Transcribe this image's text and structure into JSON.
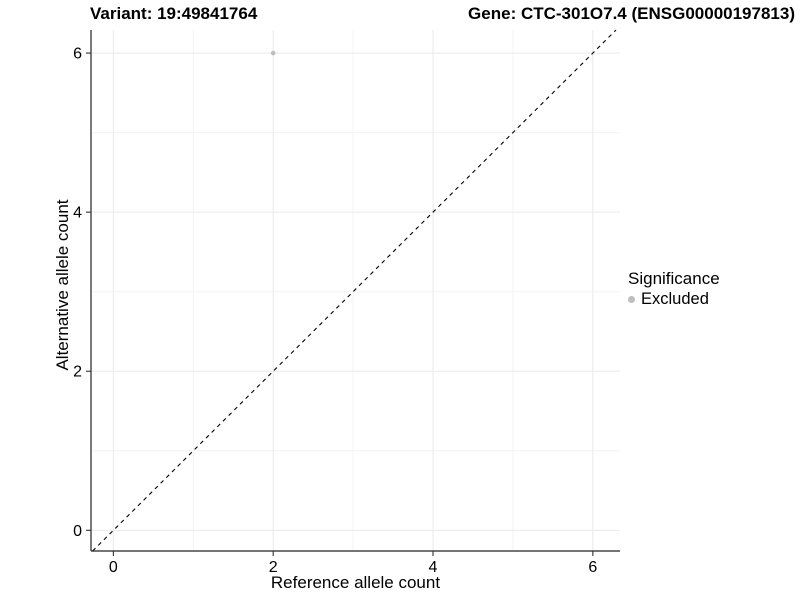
{
  "header": {
    "left_title": "Variant: 19:49841764",
    "right_title": "Gene: CTC-301O7.4 (ENSG00000197813)"
  },
  "axes": {
    "x_label": "Reference allele count",
    "y_label": "Alternative allele count"
  },
  "legend": {
    "title": "Significance",
    "items": [
      {
        "label": "Excluded",
        "color": "#bebebe"
      }
    ]
  },
  "colors": {
    "background": "#ffffff",
    "point": "#bebebe",
    "grid_major": "#e9e9e9",
    "grid_minor": "#f3f3f3",
    "axis_line": "#222222",
    "tick": "#333333",
    "text": "#000000",
    "reference_line": "#000000"
  },
  "chart_data": {
    "type": "scatter",
    "title": "Variant: 19:49841764 | Gene: CTC-301O7.4 (ENSG00000197813)",
    "xlabel": "Reference allele count",
    "ylabel": "Alternative allele count",
    "series": [
      {
        "name": "Excluded",
        "color": "#bebebe",
        "points": [
          {
            "x": 2,
            "y": 6
          }
        ]
      }
    ],
    "reference_line": {
      "kind": "identity",
      "slope": 1,
      "intercept": 0,
      "style": "dashed",
      "color": "#000000"
    },
    "xlim": [
      -0.28,
      6.34
    ],
    "ylim": [
      -0.26,
      6.29
    ],
    "x_ticks": [
      0,
      2,
      4,
      6
    ],
    "y_ticks": [
      0,
      2,
      4,
      6
    ],
    "grid_major": [
      0,
      2,
      4,
      6
    ],
    "grid_minor": [
      1,
      3,
      5
    ],
    "grid": true,
    "legend_position": "right"
  }
}
